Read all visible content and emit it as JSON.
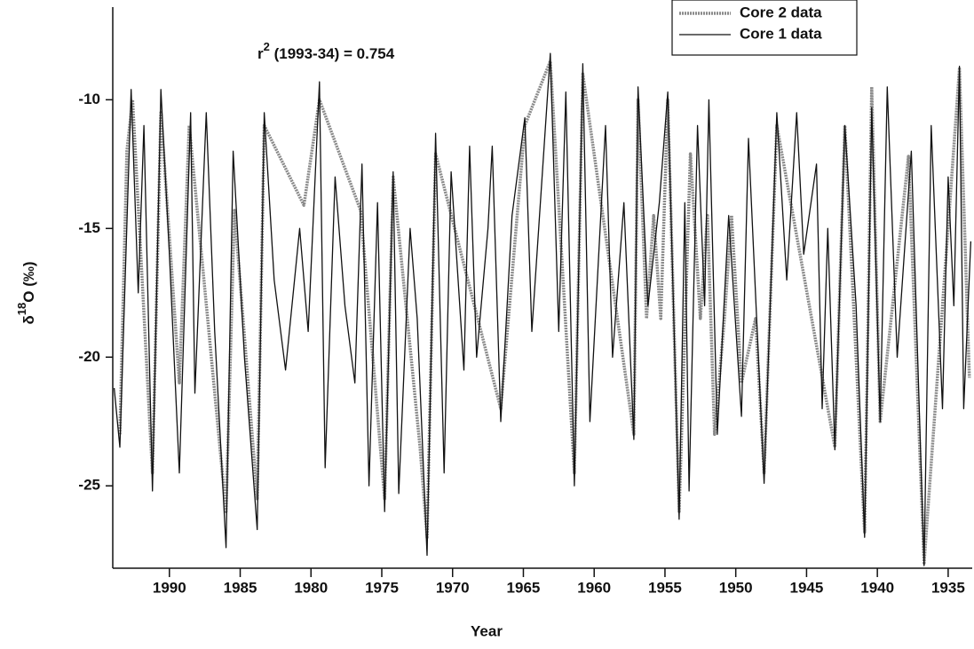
{
  "chart_data": {
    "type": "line",
    "x_label": "Year",
    "y_label": {
      "symbol": "δ",
      "superscript": "18",
      "text": "O (‰)"
    },
    "annotation": {
      "base": "r",
      "superscript": "2",
      "text": " (1993-34) = 0.754"
    },
    "xlim": [
      1994,
      1933.3
    ],
    "ylim": [
      -28.2,
      -6.4
    ],
    "xticks": [
      1990,
      1985,
      1980,
      1975,
      1970,
      1965,
      1960,
      1955,
      1950,
      1945,
      1940,
      1935
    ],
    "yticks": [
      -10,
      -15,
      -20,
      -25
    ],
    "legend": "upper right",
    "series": [
      {
        "name": "Core 2 data",
        "color": "#8a8a8a",
        "line_style": "dotted",
        "x": [
          1993.5,
          1993,
          1992.6,
          1991.2,
          1990.6,
          1989.3,
          1988.6,
          1986.0,
          1985.4,
          1983.8,
          1983.3,
          1980.5,
          1979.4,
          1976.5,
          1974.8,
          1974.2,
          1972.3,
          1971.8,
          1971.2,
          1966.6,
          1964.9,
          1963.1,
          1961.4,
          1960.8,
          1957.2,
          1956.9,
          1956.3,
          1955.8,
          1955.3,
          1954.8,
          1954.0,
          1953.2,
          1952.5,
          1952.0,
          1951.5,
          1950.8,
          1950.3,
          1949.6,
          1948.6,
          1948.0,
          1947.1,
          1943.0,
          1942.3,
          1940.9,
          1940.4,
          1939.8,
          1937.8,
          1936.7,
          1934.2,
          1933.5
        ],
        "values": [
          -23,
          -12,
          -10,
          -24.5,
          -10.5,
          -21,
          -11,
          -26,
          -14.3,
          -25.5,
          -11,
          -14.1,
          -10,
          -14.3,
          -25.5,
          -13,
          -23.5,
          -27,
          -12.1,
          -22,
          -11,
          -8.5,
          -24.5,
          -9,
          -23,
          -10,
          -18.5,
          -14.5,
          -18.5,
          -10,
          -26,
          -12.1,
          -18.5,
          -14.5,
          -23,
          -18.5,
          -14.5,
          -21,
          -18.5,
          -24.5,
          -11,
          -23.5,
          -11,
          -26.8,
          -9.5,
          -22.5,
          -12.2,
          -28,
          -8.8,
          -20.8
        ]
      },
      {
        "name": "Core 1 data",
        "color": "#111111",
        "line_style": "solid",
        "x": [
          1993.9,
          1993.5,
          1992.7,
          1992.2,
          1991.8,
          1991.2,
          1990.6,
          1990.0,
          1989.3,
          1988.5,
          1988.2,
          1987.4,
          1986.8,
          1986.0,
          1985.5,
          1984.7,
          1983.8,
          1983.3,
          1982.6,
          1981.8,
          1980.8,
          1980.2,
          1979.4,
          1979.0,
          1978.3,
          1977.6,
          1976.9,
          1976.4,
          1975.9,
          1975.3,
          1974.8,
          1974.2,
          1973.8,
          1973.0,
          1972.5,
          1971.8,
          1971.2,
          1970.6,
          1970.1,
          1969.2,
          1968.8,
          1968.3,
          1967.5,
          1967.2,
          1966.6,
          1965.8,
          1964.9,
          1964.4,
          1963.1,
          1962.5,
          1962.0,
          1961.4,
          1960.8,
          1960.3,
          1959.2,
          1958.7,
          1957.9,
          1957.2,
          1956.9,
          1956.2,
          1955.4,
          1954.8,
          1954.0,
          1953.6,
          1953.3,
          1952.7,
          1952.2,
          1951.9,
          1951.3,
          1950.5,
          1949.6,
          1949.1,
          1948.0,
          1947.1,
          1946.4,
          1945.7,
          1945.2,
          1944.3,
          1943.9,
          1943.5,
          1943.0,
          1942.3,
          1941.5,
          1940.9,
          1940.4,
          1939.8,
          1939.3,
          1938.6,
          1937.6,
          1936.7,
          1936.2,
          1935.4,
          1935.0,
          1934.6,
          1934.2,
          1933.9,
          1933.4
        ],
        "values": [
          -21.2,
          -23.5,
          -9.6,
          -17.5,
          -11,
          -25.2,
          -9.6,
          -16,
          -24.5,
          -10.5,
          -21.4,
          -10.5,
          -19,
          -27.4,
          -12,
          -20,
          -26.7,
          -10.5,
          -17,
          -20.5,
          -15,
          -19,
          -9.3,
          -24.3,
          -13,
          -18,
          -21,
          -12.5,
          -25,
          -14,
          -26,
          -12.8,
          -25.3,
          -15,
          -18.5,
          -27.7,
          -11.3,
          -24.5,
          -12.8,
          -20.5,
          -11.8,
          -20,
          -15,
          -11.8,
          -22.5,
          -14.5,
          -10.7,
          -19,
          -8.2,
          -19,
          -9.7,
          -25,
          -8.6,
          -22.5,
          -11,
          -20,
          -14,
          -23.2,
          -9.5,
          -18,
          -14,
          -9.7,
          -26.3,
          -14,
          -25.2,
          -11,
          -18,
          -10,
          -23,
          -14.5,
          -22.3,
          -11.5,
          -24.9,
          -10.5,
          -17,
          -10.5,
          -16,
          -12.5,
          -22,
          -15,
          -23.6,
          -11,
          -18,
          -27,
          -10.3,
          -22.5,
          -9.5,
          -20,
          -12,
          -28.1,
          -11,
          -22,
          -13,
          -18,
          -8.7,
          -22,
          -15.5
        ]
      }
    ]
  }
}
